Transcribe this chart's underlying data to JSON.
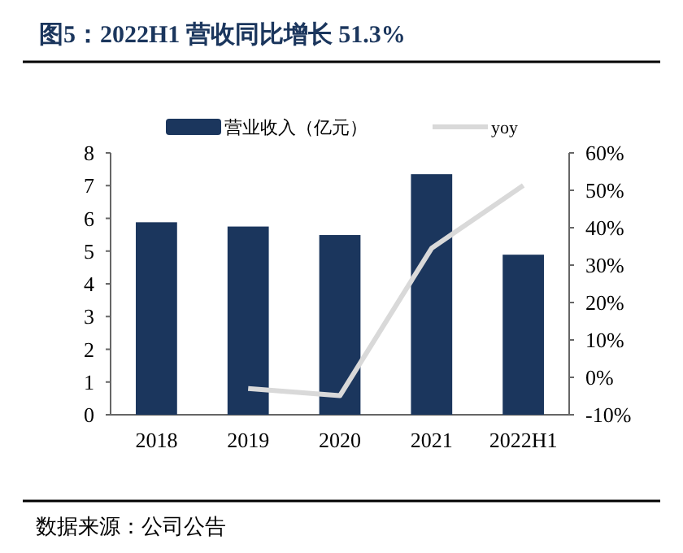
{
  "chart_data": {
    "type": "bar",
    "title": "图5：2022H1 营收同比增长 51.3%",
    "categories": [
      "2018",
      "2019",
      "2020",
      "2021",
      "2022H1"
    ],
    "series": [
      {
        "name": "营业收入（亿元）",
        "color": "#1b365d",
        "values": [
          5.88,
          5.75,
          5.49,
          7.35,
          4.89
        ]
      },
      {
        "name": "yoy",
        "type": "line",
        "axis": "y2",
        "color": "#d9d9d9",
        "values": [
          null,
          -3,
          -4.9,
          34.5,
          51.3
        ]
      }
    ],
    "ylim": [
      0,
      8
    ],
    "yticks": [
      0,
      1,
      2,
      3,
      4,
      5,
      6,
      7,
      8
    ],
    "y2lim": [
      -10,
      60
    ],
    "y2ticks": [
      {
        "value": -10,
        "label": "-10%"
      },
      {
        "value": 0,
        "label": "0%"
      },
      {
        "value": 10,
        "label": "10%"
      },
      {
        "value": 20,
        "label": "20%"
      },
      {
        "value": 30,
        "label": "30%"
      },
      {
        "value": 40,
        "label": "40%"
      },
      {
        "value": 50,
        "label": "50%"
      },
      {
        "value": 60,
        "label": "60%"
      }
    ],
    "legend": "top",
    "grid": false,
    "annotations": [
      "数据来源：公司公告"
    ]
  }
}
